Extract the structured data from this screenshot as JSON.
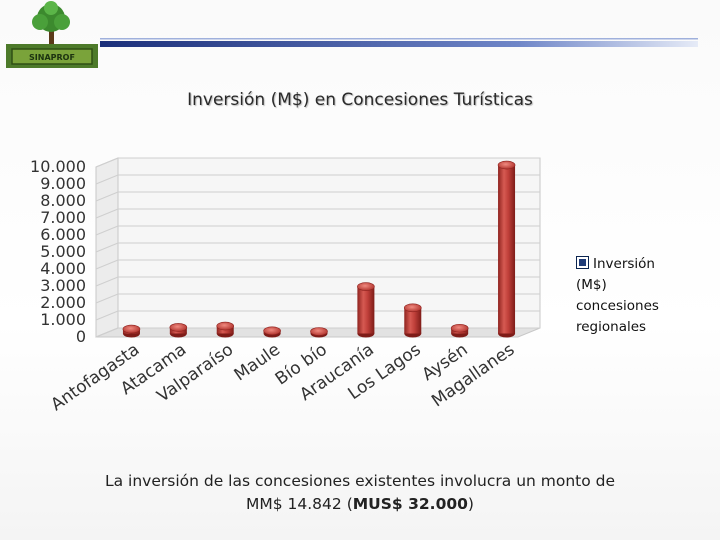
{
  "logo": {
    "label": "SINAPROF"
  },
  "chart_data": {
    "type": "bar",
    "title": "Inversión (M$) en Concesiones Turísticas",
    "categories": [
      "Antofagasta",
      "Atacama",
      "Valparaíso",
      "Maule",
      "Bío bío",
      "Araucanía",
      "Los Lagos",
      "Aysén",
      "Magallanes"
    ],
    "series": [
      {
        "name": "Inversión (M$) concesiones regionales",
        "values": [
          200,
          300,
          380,
          100,
          50,
          2700,
          1450,
          250,
          9850
        ]
      }
    ],
    "ylim": [
      0,
      10000
    ],
    "yticks": [
      "0",
      "1.000",
      "2.000",
      "3.000",
      "4.000",
      "5.000",
      "6.000",
      "7.000",
      "8.000",
      "9.000",
      "10.000"
    ],
    "xlabel": "",
    "ylabel": "",
    "grid": true,
    "legend_position": "right",
    "bar_color": "#c0403a"
  },
  "legend": {
    "label": "Inversión (M$) concesiones regionales"
  },
  "footnote": {
    "line1": "La inversión de las concesiones existentes involucra un monto de",
    "line2_prefix": "MM$ 14.842 (",
    "line2_bold": "MUS$ 32.000",
    "line2_suffix": ")"
  }
}
